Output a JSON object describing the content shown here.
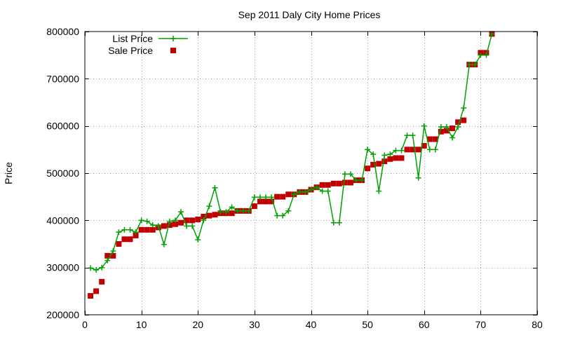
{
  "chart_data": {
    "type": "line",
    "title": "Sep 2011 Daly City Home Prices",
    "xlabel": "",
    "ylabel": "Price",
    "xlim": [
      0,
      80
    ],
    "ylim": [
      200000,
      800000
    ],
    "x_ticks": [
      0,
      10,
      20,
      30,
      40,
      50,
      60,
      70,
      80
    ],
    "y_ticks": [
      200000,
      300000,
      400000,
      500000,
      600000,
      700000,
      800000
    ],
    "grid": true,
    "legend_position": "top-left",
    "series": [
      {
        "name": "List Price",
        "style": "linespoints",
        "marker": "plus",
        "color": "#00a000",
        "x": [
          1,
          2,
          3,
          4,
          5,
          6,
          7,
          8,
          9,
          10,
          11,
          12,
          13,
          14,
          15,
          16,
          17,
          18,
          19,
          20,
          21,
          22,
          23,
          24,
          25,
          26,
          27,
          28,
          29,
          30,
          31,
          32,
          33,
          34,
          35,
          36,
          37,
          38,
          39,
          40,
          41,
          42,
          43,
          44,
          45,
          46,
          47,
          48,
          49,
          50,
          51,
          52,
          53,
          54,
          55,
          56,
          57,
          58,
          59,
          60,
          61,
          62,
          63,
          64,
          65,
          66,
          67,
          68,
          69,
          70,
          71,
          72
        ],
        "values": [
          299000,
          295000,
          300000,
          315000,
          335000,
          375000,
          380000,
          380000,
          375000,
          400000,
          398000,
          390000,
          388000,
          349000,
          398000,
          400000,
          418000,
          388000,
          388000,
          359000,
          400000,
          430000,
          469000,
          418000,
          418000,
          428000,
          420000,
          420000,
          420000,
          449000,
          449000,
          449000,
          449000,
          410000,
          410000,
          420000,
          455000,
          460000,
          460000,
          465000,
          470000,
          462000,
          462000,
          395000,
          395000,
          498000,
          498000,
          485000,
          485000,
          550000,
          540000,
          462000,
          538000,
          540000,
          548000,
          548000,
          580000,
          580000,
          490000,
          600000,
          550000,
          550000,
          598000,
          598000,
          575000,
          598000,
          638000,
          730000,
          730000,
          750000,
          750000,
          795000
        ]
      },
      {
        "name": "Sale Price",
        "style": "points",
        "marker": "square",
        "color": "#c00000",
        "x": [
          1,
          2,
          3,
          4,
          5,
          6,
          7,
          8,
          9,
          10,
          11,
          12,
          13,
          14,
          15,
          16,
          17,
          18,
          19,
          20,
          21,
          22,
          23,
          24,
          25,
          26,
          27,
          28,
          29,
          30,
          31,
          32,
          33,
          34,
          35,
          36,
          37,
          38,
          39,
          40,
          41,
          42,
          43,
          44,
          45,
          46,
          47,
          48,
          49,
          50,
          51,
          52,
          53,
          54,
          55,
          56,
          57,
          58,
          59,
          60,
          61,
          62,
          63,
          64,
          65,
          66,
          67,
          68,
          69,
          70,
          71,
          72
        ],
        "values": [
          240000,
          250000,
          270000,
          325000,
          325000,
          350000,
          360000,
          360000,
          368000,
          380000,
          380000,
          380000,
          385000,
          388000,
          390000,
          392000,
          395000,
          400000,
          400000,
          402000,
          408000,
          410000,
          412000,
          415000,
          415000,
          415000,
          420000,
          420000,
          420000,
          430000,
          440000,
          440000,
          440000,
          450000,
          450000,
          455000,
          455000,
          460000,
          460000,
          465000,
          470000,
          475000,
          475000,
          478000,
          478000,
          480000,
          480000,
          485000,
          485000,
          510000,
          518000,
          520000,
          525000,
          530000,
          532000,
          532000,
          550000,
          550000,
          550000,
          558000,
          572000,
          572000,
          588000,
          590000,
          595000,
          608000,
          612000,
          730000,
          730000,
          755000,
          755000,
          795000
        ]
      }
    ]
  }
}
